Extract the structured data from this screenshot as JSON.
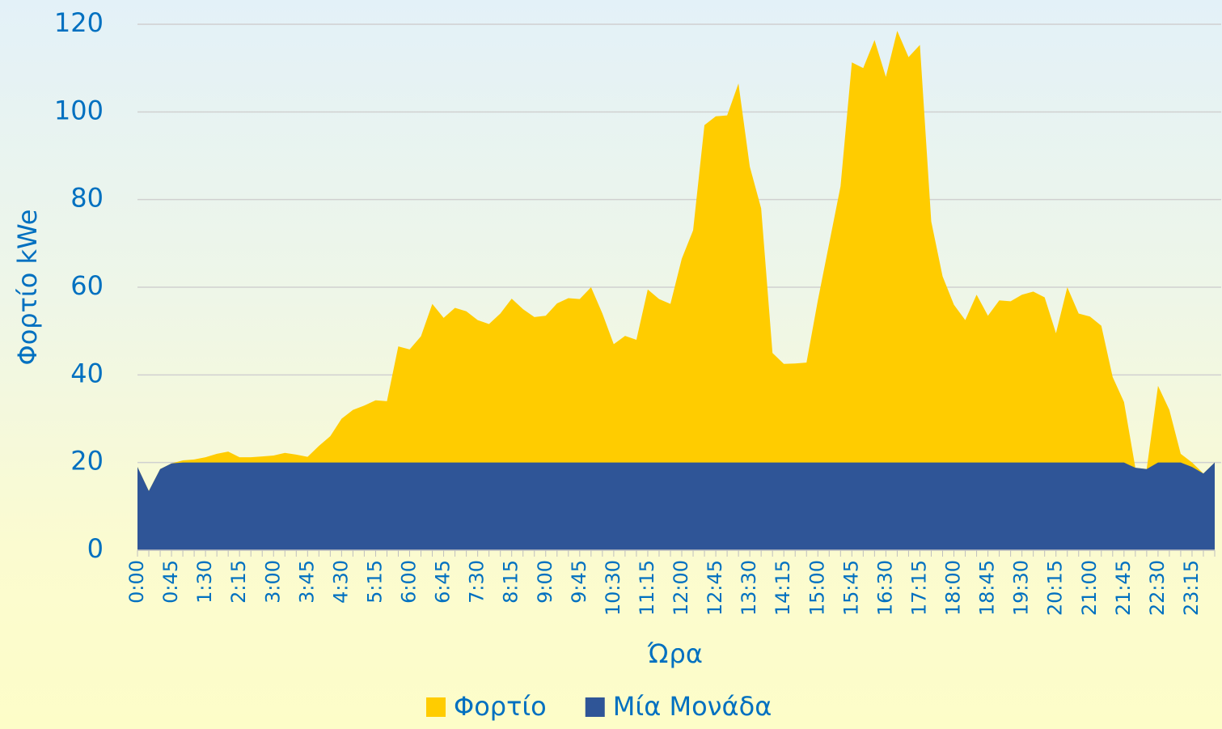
{
  "chart_data": {
    "type": "area",
    "x_label": "Ώρα",
    "y_label": "Φορτίο kWe",
    "categories": [
      "0:00",
      null,
      null,
      "0:45",
      null,
      null,
      "1:30",
      null,
      null,
      "2:15",
      null,
      null,
      "3:00",
      null,
      null,
      "3:45",
      null,
      null,
      "4:30",
      null,
      null,
      "5:15",
      null,
      null,
      "6:00",
      null,
      null,
      "6:45",
      null,
      null,
      "7:30",
      null,
      null,
      "8:15",
      null,
      null,
      "9:00",
      null,
      null,
      "9:45",
      null,
      null,
      "10:30",
      null,
      null,
      "11:15",
      null,
      null,
      "12:00",
      null,
      null,
      "12:45",
      null,
      null,
      "13:30",
      null,
      null,
      "14:15",
      null,
      null,
      "15:00",
      null,
      null,
      "15:45",
      null,
      null,
      "16:30",
      null,
      null,
      "17:15",
      null,
      null,
      "18:00",
      null,
      null,
      "18:45",
      null,
      null,
      "19:30",
      null,
      null,
      "20:15",
      null,
      null,
      "21:00",
      null,
      null,
      "21:45",
      null,
      null,
      "22:30",
      null,
      null,
      "23:15",
      null,
      null
    ],
    "series": [
      {
        "name": "Φορτίο",
        "color": "#ffcc00",
        "values": [
          19,
          13.5,
          18.5,
          19.8,
          20.5,
          20.7,
          21.2,
          22,
          22.5,
          21.2,
          21.2,
          21.4,
          21.6,
          22.2,
          21.8,
          21.3,
          23.8,
          26,
          30,
          32,
          33,
          34.2,
          34,
          46.5,
          45.8,
          48.8,
          56.2,
          53,
          55.3,
          54.5,
          52.5,
          51.6,
          54,
          57.4,
          55,
          53.2,
          53.5,
          56.3,
          57.5,
          57.3,
          60,
          54,
          47,
          48.9,
          48,
          59.5,
          57.3,
          56.2,
          66.5,
          73,
          97,
          99,
          99.2,
          106.5,
          87.5,
          78,
          45,
          42.5,
          42.6,
          42.8,
          57,
          70,
          83,
          111.3,
          110,
          116.4,
          108,
          118.5,
          112.5,
          115.3,
          75,
          62.5,
          56,
          52.5,
          58.3,
          53.5,
          57,
          56.8,
          58.3,
          59,
          57.7,
          49.5,
          60,
          54,
          53.3,
          51.2,
          39.5,
          33.8,
          18.8,
          18.5,
          37.5,
          32,
          22,
          20,
          17.5,
          20
        ]
      },
      {
        "name": "Μία Μονάδα",
        "color": "#2f5597",
        "values": [
          19,
          13.5,
          18.5,
          19.8,
          20,
          20,
          20,
          20,
          20,
          20,
          20,
          20,
          20,
          20,
          20,
          20,
          20,
          20,
          20,
          20,
          20,
          20,
          20,
          20,
          20,
          20,
          20,
          20,
          20,
          20,
          20,
          20,
          20,
          20,
          20,
          20,
          20,
          20,
          20,
          20,
          20,
          20,
          20,
          20,
          20,
          20,
          20,
          20,
          20,
          20,
          20,
          20,
          20,
          20,
          20,
          20,
          20,
          20,
          20,
          20,
          20,
          20,
          20,
          20,
          20,
          20,
          20,
          20,
          20,
          20,
          20,
          20,
          20,
          20,
          20,
          20,
          20,
          20,
          20,
          20,
          20,
          20,
          20,
          20,
          20,
          20,
          20,
          20,
          18.8,
          18.5,
          20,
          20,
          20,
          19,
          17.5,
          20
        ]
      }
    ],
    "ylim": [
      0,
      120
    ],
    "yticks": [
      0,
      20,
      40,
      60,
      80,
      100,
      120
    ],
    "grid": true,
    "legend": "bottom"
  }
}
